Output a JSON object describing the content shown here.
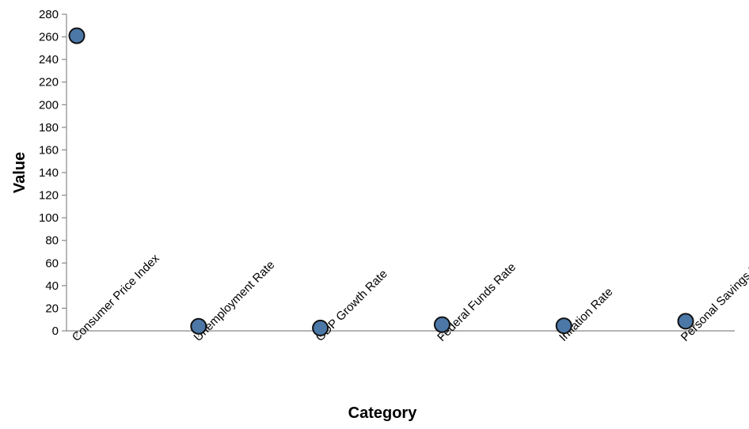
{
  "chart_data": {
    "type": "scatter",
    "title": "",
    "xlabel": "Category",
    "ylabel": "Value",
    "categories": [
      "Consumer Price Index",
      "Unemployment Rate",
      "GDP Growth Rate",
      "Federal Funds Rate",
      "Inflation Rate",
      "Personal Savings Rate"
    ],
    "values": [
      261,
      4,
      2.5,
      5.5,
      4.5,
      8.5
    ],
    "ylim": [
      0,
      280
    ],
    "yticks": [
      0,
      20,
      40,
      60,
      80,
      100,
      120,
      140,
      160,
      180,
      200,
      220,
      240,
      260,
      280
    ],
    "grid": false,
    "colors": {
      "point": "#4c78a8",
      "point_stroke": "#111111",
      "axis": "#888888"
    }
  }
}
